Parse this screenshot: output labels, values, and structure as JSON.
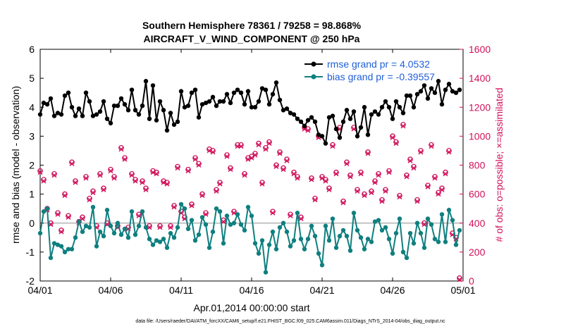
{
  "chart_data": {
    "type": "line",
    "title": "Southern Hemisphere 78361 / 79258 = 98.868%",
    "subtitle": "AIRCRAFT_V_WIND_COMPONENT @ 250 hPa",
    "xlabel": "Apr.01,2014 00:00:00 start",
    "ylabel": "rmse and bias (model - observation)",
    "ylabel_right": "# of obs: o=possible; ×=assimilated",
    "xlim": [
      0,
      30
    ],
    "ylim": [
      -2,
      6
    ],
    "ylim_right": [
      0,
      1600
    ],
    "x_ticks": [
      0,
      5,
      10,
      15,
      20,
      25,
      30
    ],
    "x_tick_labels": [
      "04/01",
      "04/06",
      "04/11",
      "04/16",
      "04/21",
      "04/26",
      "05/01"
    ],
    "y_ticks": [
      -2,
      -1,
      0,
      1,
      2,
      3,
      4,
      5,
      6
    ],
    "y_tick_labels": [
      "-2",
      "-1",
      "0",
      "1",
      "2",
      "3",
      "4",
      "5",
      "6"
    ],
    "y_ticks_right": [
      0,
      200,
      400,
      600,
      800,
      1000,
      1200,
      1400,
      1600
    ],
    "y_tick_labels_right": [
      "0",
      "200",
      "400",
      "600",
      "800",
      "1000",
      "1200",
      "1400",
      "1600"
    ],
    "footnote": "data file: /Users/raeder/DAI/ATM_forcXX/CAM6_setup/f.e21.FHIST_BGC.f09_025.CAM6assim.011/Diags_NTrS_2014-04/obs_diag_output.nc",
    "colors": {
      "rmse": "#000000",
      "bias": "#0f7f7f",
      "obs": "#d0115a",
      "zero_line": "#b3b3b3",
      "legend_text": "#1f5fd8"
    },
    "legend": [
      {
        "name": "rmse grand pr = 4.0532",
        "series": "rmse"
      },
      {
        "name": "bias grand pr = -0.39557",
        "series": "bias"
      }
    ],
    "legend_position": "top-right",
    "series": [
      {
        "name": "rmse",
        "x": [
          0,
          0.25,
          0.5,
          0.75,
          1,
          1.25,
          1.5,
          1.75,
          2,
          2.25,
          2.5,
          2.75,
          3,
          3.25,
          3.5,
          3.75,
          4,
          4.25,
          4.5,
          4.75,
          5,
          5.25,
          5.5,
          5.75,
          6,
          6.25,
          6.5,
          6.75,
          7,
          7.25,
          7.5,
          7.75,
          8,
          8.25,
          8.5,
          8.75,
          9,
          9.25,
          9.5,
          9.75,
          10,
          10.25,
          10.5,
          10.75,
          11,
          11.25,
          11.5,
          11.75,
          12,
          12.25,
          12.5,
          12.75,
          13,
          13.25,
          13.5,
          13.75,
          14,
          14.25,
          14.5,
          14.75,
          15,
          15.25,
          15.5,
          15.75,
          16,
          16.25,
          16.5,
          16.75,
          17,
          17.25,
          17.5,
          17.75,
          18,
          18.25,
          18.5,
          18.75,
          19,
          19.25,
          19.5,
          19.75,
          20,
          20.25,
          20.5,
          20.75,
          21,
          21.25,
          21.5,
          21.75,
          22,
          22.25,
          22.5,
          22.75,
          23,
          23.25,
          23.5,
          23.75,
          24,
          24.25,
          24.5,
          24.75,
          25,
          25.25,
          25.5,
          25.75,
          26,
          26.25,
          26.5,
          26.75,
          27,
          27.25,
          27.5,
          27.75,
          28,
          28.25,
          28.5,
          28.75,
          29,
          29.25,
          29.5,
          29.75
        ],
        "values": [
          3.75,
          4.15,
          4.1,
          4.3,
          3.7,
          3.8,
          3.75,
          4.4,
          4.5,
          4.0,
          3.7,
          3.95,
          3.7,
          4.5,
          4.2,
          3.7,
          3.75,
          3.85,
          4.2,
          3.6,
          3.45,
          4.05,
          4.05,
          4.3,
          4.1,
          3.9,
          4.6,
          3.9,
          3.75,
          4.05,
          4.9,
          3.6,
          4.75,
          3.55,
          4.2,
          3.9,
          3.2,
          3.8,
          3.4,
          3.5,
          4.55,
          4.0,
          4.05,
          4.5,
          4.6,
          3.65,
          4.1,
          4.15,
          4.2,
          4.35,
          4.05,
          4.2,
          4.2,
          4.45,
          4.15,
          4.5,
          4.6,
          4.5,
          4.1,
          4.55,
          4.0,
          4.0,
          4.2,
          4.65,
          4.6,
          4.1,
          4.45,
          4.85,
          4.25,
          3.9,
          3.95,
          3.8,
          3.75,
          3.6,
          3.5,
          3.35,
          3.55,
          3.65,
          3.5,
          3.05,
          3.0,
          2.75,
          3.65,
          3.7,
          3.25,
          2.95,
          3.5,
          3.9,
          3.6,
          3.85,
          3.0,
          3.3,
          4.0,
          3.05,
          3.75,
          3.85,
          3.75,
          4.0,
          4.2,
          4.0,
          3.6,
          4.2,
          4.0,
          3.8,
          4.4,
          4.4,
          4.0,
          4.45,
          4.55,
          4.75,
          4.3,
          4.65,
          4.5,
          4.9,
          4.1,
          4.6,
          4.8,
          4.55,
          4.5,
          4.6
        ]
      },
      {
        "name": "bias",
        "x": [
          0,
          0.25,
          0.5,
          0.75,
          1,
          1.25,
          1.5,
          1.75,
          2,
          2.25,
          2.5,
          2.75,
          3,
          3.25,
          3.5,
          3.75,
          4,
          4.25,
          4.5,
          4.75,
          5,
          5.25,
          5.5,
          5.75,
          6,
          6.25,
          6.5,
          6.75,
          7,
          7.25,
          7.5,
          7.75,
          8,
          8.25,
          8.5,
          8.75,
          9,
          9.25,
          9.5,
          9.75,
          10,
          10.25,
          10.5,
          10.75,
          11,
          11.25,
          11.5,
          11.75,
          12,
          12.25,
          12.5,
          12.75,
          13,
          13.25,
          13.5,
          13.75,
          14,
          14.25,
          14.5,
          14.75,
          15,
          15.25,
          15.5,
          15.75,
          16,
          16.25,
          16.5,
          16.75,
          17,
          17.25,
          17.5,
          17.75,
          18,
          18.25,
          18.5,
          18.75,
          19,
          19.25,
          19.5,
          19.75,
          20,
          20.25,
          20.5,
          20.75,
          21,
          21.25,
          21.5,
          21.75,
          22,
          22.25,
          22.5,
          22.75,
          23,
          23.25,
          23.5,
          23.75,
          24,
          24.25,
          24.5,
          24.75,
          25,
          25.25,
          25.5,
          25.75,
          26,
          26.25,
          26.5,
          26.75,
          27,
          27.25,
          27.5,
          27.75,
          28,
          28.25,
          28.5,
          28.75,
          29,
          29.25,
          29.5,
          29.75
        ],
        "values": [
          -0.35,
          0.4,
          0.5,
          -1.2,
          -0.7,
          -0.75,
          -0.8,
          -1.0,
          -0.9,
          -0.9,
          -0.5,
          0.05,
          -0.3,
          -0.1,
          -0.15,
          0.55,
          -0.8,
          -0.3,
          -0.45,
          0.45,
          -0.1,
          -0.35,
          0.0,
          -0.4,
          -0.2,
          -0.5,
          0.4,
          -0.4,
          -0.1,
          0.4,
          -0.15,
          -0.55,
          -0.75,
          -0.6,
          -0.65,
          -0.55,
          -0.85,
          -0.35,
          -0.5,
          -0.15,
          0.65,
          0.5,
          -0.2,
          0.1,
          -0.6,
          -0.4,
          0.2,
          -0.05,
          -0.85,
          -0.3,
          0.5,
          0.4,
          -0.7,
          0.25,
          -0.05,
          0.0,
          0.3,
          -0.05,
          -0.25,
          0.55,
          0.25,
          -0.7,
          -1.05,
          -0.6,
          -1.7,
          -0.75,
          -0.3,
          -0.9,
          -0.15,
          0.0,
          -0.3,
          -0.8,
          -0.6,
          0.35,
          -0.55,
          -0.9,
          -0.55,
          -0.1,
          -0.45,
          -1.05,
          -1.45,
          -0.1,
          -0.6,
          0.15,
          -0.85,
          -0.45,
          -0.25,
          -0.45,
          -0.95,
          0.35,
          -0.25,
          -0.5,
          -0.9,
          -0.55,
          -0.65,
          0.05,
          0.1,
          -0.25,
          -0.15,
          -0.55,
          -1.05,
          -0.35,
          0.15,
          -1.0,
          -1.2,
          -0.35,
          -0.7,
          0.0,
          -0.35,
          -0.85,
          0.15,
          -0.05,
          -0.55,
          -0.65,
          0.3,
          -0.65,
          0.45,
          0.1,
          -0.75,
          -0.25
        ]
      },
      {
        "name": "possible",
        "axis": "right",
        "x": [
          0,
          0.25,
          0.5,
          0.75,
          1,
          1.25,
          1.5,
          1.75,
          2,
          2.25,
          2.5,
          2.75,
          3,
          3.25,
          3.5,
          3.75,
          4,
          4.25,
          4.5,
          4.75,
          5,
          5.25,
          5.5,
          5.75,
          6,
          6.25,
          6.5,
          6.75,
          7,
          7.25,
          7.5,
          7.75,
          8,
          8.25,
          8.5,
          8.75,
          9,
          9.25,
          9.5,
          9.75,
          10,
          10.25,
          10.5,
          10.75,
          11,
          11.25,
          11.5,
          11.75,
          12,
          12.25,
          12.5,
          12.75,
          13,
          13.25,
          13.5,
          13.75,
          14,
          14.25,
          14.5,
          14.75,
          15,
          15.25,
          15.5,
          15.75,
          16,
          16.25,
          16.5,
          16.75,
          17,
          17.25,
          17.5,
          17.75,
          18,
          18.25,
          18.5,
          18.75,
          19,
          19.25,
          19.5,
          19.75,
          20,
          20.25,
          20.5,
          20.75,
          21,
          21.25,
          21.5,
          21.75,
          22,
          22.25,
          22.5,
          22.75,
          23,
          23.25,
          23.5,
          23.75,
          24,
          24.25,
          24.5,
          24.75,
          25,
          25.25,
          25.5,
          25.75,
          26,
          26.25,
          26.5,
          26.75,
          27,
          27.25,
          27.5,
          27.75,
          28,
          28.25,
          28.5,
          28.75,
          29,
          29.25,
          29.5,
          29.75
        ],
        "values": [
          760,
          700,
          500,
          400,
          740,
          470,
          350,
          600,
          450,
          820,
          690,
          410,
          440,
          720,
          570,
          620,
          380,
          740,
          640,
          400,
          770,
          720,
          380,
          920,
          850,
          370,
          740,
          700,
          460,
          690,
          640,
          380,
          760,
          750,
          380,
          690,
          680,
          380,
          520,
          790,
          480,
          440,
          770,
          530,
          850,
          810,
          600,
          470,
          910,
          900,
          630,
          680,
          420,
          870,
          780,
          480,
          940,
          940,
          740,
          850,
          860,
          880,
          950,
          680,
          920,
          960,
          480,
          800,
          890,
          780,
          840,
          460,
          750,
          720,
          440,
          1060,
          1050,
          710,
          570,
          1000,
          720,
          700,
          640,
          940,
          750,
          1060,
          550,
          820,
          730,
          1060,
          630,
          750,
          600,
          890,
          620,
          690,
          740,
          560,
          630,
          760,
          1000,
          960,
          590,
          1080,
          730,
          840,
          790,
          560,
          900,
          400,
          660,
          940,
          720,
          610,
          640,
          750,
          900,
          330,
          300,
          20
        ]
      },
      {
        "name": "assimilated",
        "axis": "right",
        "x": [
          0,
          0.25,
          0.5,
          0.75,
          1,
          1.25,
          1.5,
          1.75,
          2,
          2.25,
          2.5,
          2.75,
          3,
          3.25,
          3.5,
          3.75,
          4,
          4.25,
          4.5,
          4.75,
          5,
          5.25,
          5.5,
          5.75,
          6,
          6.25,
          6.5,
          6.75,
          7,
          7.25,
          7.5,
          7.75,
          8,
          8.25,
          8.5,
          8.75,
          9,
          9.25,
          9.5,
          9.75,
          10,
          10.25,
          10.5,
          10.75,
          11,
          11.25,
          11.5,
          11.75,
          12,
          12.25,
          12.5,
          12.75,
          13,
          13.25,
          13.5,
          13.75,
          14,
          14.25,
          14.5,
          14.75,
          15,
          15.25,
          15.5,
          15.75,
          16,
          16.25,
          16.5,
          16.75,
          17,
          17.25,
          17.5,
          17.75,
          18,
          18.25,
          18.5,
          18.75,
          19,
          19.25,
          19.5,
          19.75,
          20,
          20.25,
          20.5,
          20.75,
          21,
          21.25,
          21.5,
          21.75,
          22,
          22.25,
          22.5,
          22.75,
          23,
          23.25,
          23.5,
          23.75,
          24,
          24.25,
          24.5,
          24.75,
          25,
          25.25,
          25.5,
          25.75,
          26,
          26.25,
          26.5,
          26.75,
          27,
          27.25,
          27.5,
          27.75,
          28,
          28.25,
          28.5,
          28.75,
          29,
          29.25,
          29.5,
          29.75
        ],
        "values": [
          750,
          690,
          490,
          390,
          730,
          460,
          340,
          590,
          440,
          810,
          680,
          400,
          430,
          710,
          560,
          610,
          370,
          730,
          630,
          390,
          760,
          710,
          370,
          910,
          840,
          360,
          730,
          690,
          450,
          680,
          630,
          370,
          750,
          740,
          370,
          680,
          670,
          370,
          510,
          780,
          470,
          430,
          760,
          520,
          840,
          800,
          590,
          460,
          900,
          890,
          620,
          670,
          410,
          860,
          770,
          470,
          930,
          930,
          730,
          840,
          850,
          870,
          940,
          670,
          910,
          950,
          470,
          790,
          880,
          770,
          830,
          450,
          740,
          710,
          430,
          1050,
          1040,
          700,
          560,
          990,
          710,
          690,
          630,
          930,
          740,
          1050,
          540,
          810,
          720,
          1050,
          620,
          740,
          590,
          880,
          610,
          680,
          730,
          550,
          620,
          750,
          990,
          950,
          580,
          1070,
          720,
          830,
          780,
          550,
          890,
          390,
          650,
          930,
          710,
          600,
          630,
          740,
          890,
          320,
          290,
          10
        ]
      }
    ]
  }
}
